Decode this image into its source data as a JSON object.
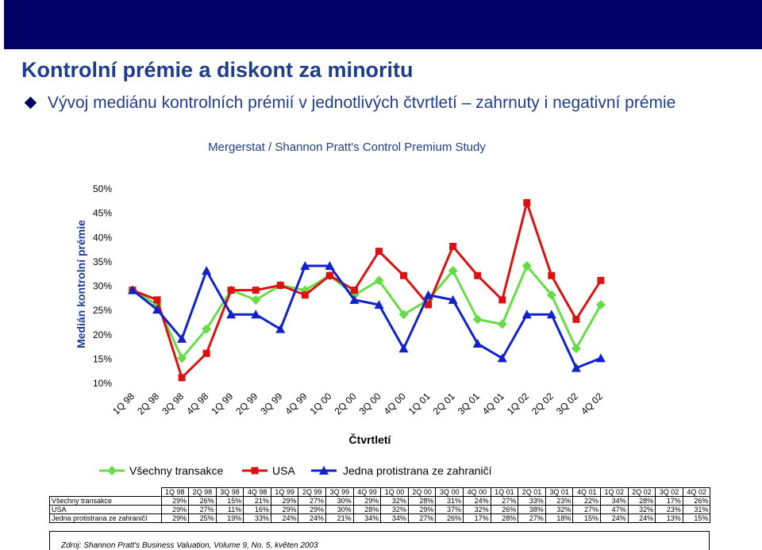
{
  "slide": {
    "title": "Kontrolní prémie a diskont za minoritu",
    "subtitle": "Vývoj mediánu kontrolních prémií v jednotlivých čtvrtletí – zahrnuty i negativní prémie",
    "bullet_icon": "diamond-bullet-icon",
    "source": "Zdroj: Shannon Pratt's Business Valuation, Volume 9, No. 5, květen 2003",
    "topbar_color": "#000066"
  },
  "chart_data": {
    "type": "line",
    "title": "Mergerstat / Shannon Pratt's Control Premium Study",
    "xlabel": "Čtvrtletí",
    "ylabel": "Medián kontrolní prémie",
    "ylim": [
      10,
      50
    ],
    "yticks": [
      "10%",
      "15%",
      "20%",
      "25%",
      "30%",
      "35%",
      "40%",
      "45%",
      "50%"
    ],
    "categories": [
      "1Q 98",
      "2Q 98",
      "3Q 98",
      "4Q 98",
      "1Q 99",
      "2Q 99",
      "3Q 99",
      "4Q 99",
      "1Q 00",
      "2Q 00",
      "3Q 00",
      "4Q 00",
      "1Q 01",
      "2Q 01",
      "3Q 01",
      "4Q 01",
      "1Q 02",
      "2Q 02",
      "3Q 02",
      "4Q 02"
    ],
    "grid": false,
    "legend_position": "bottom",
    "series": [
      {
        "name": "Všechny transakce",
        "color": "#66dd44",
        "marker": "diamond",
        "values": [
          29,
          26,
          15,
          21,
          29,
          27,
          30,
          29,
          32,
          28,
          31,
          24,
          27,
          33,
          23,
          22,
          34,
          28,
          17,
          26
        ],
        "labels": [
          "29%",
          "26%",
          "15%",
          "21%",
          "29%",
          "27%",
          "30%",
          "29%",
          "32%",
          "28%",
          "31%",
          "24%",
          "27%",
          "33%",
          "23%",
          "22%",
          "34%",
          "28%",
          "17%",
          "26%"
        ]
      },
      {
        "name": "USA",
        "color": "#dd1111",
        "marker": "square",
        "values": [
          29,
          27,
          11,
          16,
          29,
          29,
          30,
          28,
          32,
          29,
          37,
          32,
          26,
          38,
          32,
          27,
          47,
          32,
          23,
          31
        ],
        "labels": [
          "29%",
          "27%",
          "11%",
          "16%",
          "29%",
          "29%",
          "30%",
          "28%",
          "32%",
          "29%",
          "37%",
          "32%",
          "26%",
          "38%",
          "32%",
          "27%",
          "47%",
          "32%",
          "23%",
          "31%"
        ]
      },
      {
        "name": "Jedna protistrana ze zahraničí",
        "color": "#1122cc",
        "marker": "triangle",
        "values": [
          29,
          25,
          19,
          33,
          24,
          24,
          21,
          34,
          34,
          27,
          26,
          17,
          28,
          27,
          18,
          15,
          24,
          24,
          13,
          15
        ],
        "labels": [
          "29%",
          "25%",
          "19%",
          "33%",
          "24%",
          "24%",
          "21%",
          "34%",
          "34%",
          "27%",
          "26%",
          "17%",
          "28%",
          "27%",
          "18%",
          "15%",
          "24%",
          "24%",
          "13%",
          "15%"
        ]
      }
    ]
  }
}
